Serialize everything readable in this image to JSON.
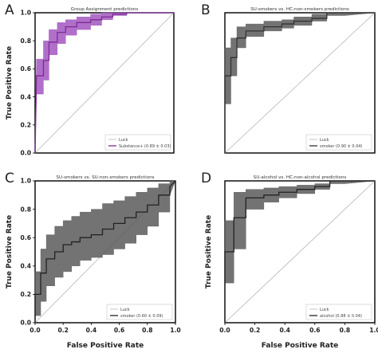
{
  "figure": {
    "ylabel": "True Positive Rate",
    "xlabel": "False Positive Rate"
  },
  "chart_data": [
    {
      "letter": "A",
      "type": "line",
      "title": "Group Assignment predictions",
      "xlim": [
        0,
        1
      ],
      "ylim": [
        0,
        1
      ],
      "xticks": [],
      "yticks": [
        "0.0",
        "0.2",
        "0.4",
        "0.6",
        "0.8",
        "1.0"
      ],
      "color": "#7f2a96",
      "fill": "#a257c0",
      "luck_label": "Luck",
      "series_label": "Substance+ (0.89 ± 0.03)",
      "x": [
        0.0,
        0.01,
        0.02,
        0.03,
        0.06,
        0.06,
        0.1,
        0.1,
        0.16,
        0.16,
        0.22,
        0.22,
        0.3,
        0.3,
        0.4,
        0.4,
        0.48,
        0.48,
        0.56,
        0.56,
        0.66,
        0.66,
        0.8,
        1.0
      ],
      "y": [
        0.0,
        0.55,
        0.55,
        0.55,
        0.55,
        0.66,
        0.66,
        0.79,
        0.79,
        0.86,
        0.86,
        0.9,
        0.9,
        0.93,
        0.93,
        0.95,
        0.95,
        0.97,
        0.97,
        0.99,
        0.99,
        1.0,
        1.0,
        1.0
      ],
      "lo": [
        0.0,
        0.42,
        0.42,
        0.42,
        0.42,
        0.52,
        0.52,
        0.7,
        0.7,
        0.78,
        0.78,
        0.84,
        0.84,
        0.88,
        0.88,
        0.91,
        0.91,
        0.95,
        0.95,
        0.98,
        0.98,
        1.0,
        1.0,
        1.0
      ],
      "hi": [
        0.0,
        0.67,
        0.67,
        0.67,
        0.67,
        0.8,
        0.8,
        0.88,
        0.88,
        0.93,
        0.93,
        0.95,
        0.95,
        0.97,
        0.97,
        0.99,
        0.99,
        1.0,
        1.0,
        1.0,
        1.0,
        1.0,
        1.0,
        1.0
      ]
    },
    {
      "letter": "B",
      "type": "line",
      "title": "SU-smokers vs. HC-non-smokers predictions",
      "xlim": [
        0,
        1
      ],
      "ylim": [
        0,
        1
      ],
      "xticks": [],
      "yticks": [],
      "color": "#333333",
      "fill": "#5a5a5a",
      "luck_label": "Luck",
      "series_label": "smoker (0.90 ± 0.04)",
      "x": [
        0.0,
        0.0,
        0.04,
        0.04,
        0.08,
        0.08,
        0.14,
        0.14,
        0.26,
        0.26,
        0.38,
        0.38,
        0.46,
        0.46,
        0.58,
        0.58,
        0.68,
        0.68,
        0.8,
        1.0
      ],
      "y": [
        0.0,
        0.55,
        0.55,
        0.68,
        0.68,
        0.82,
        0.82,
        0.87,
        0.87,
        0.9,
        0.9,
        0.92,
        0.92,
        0.94,
        0.94,
        0.96,
        0.96,
        1.0,
        1.0,
        1.0
      ],
      "lo": [
        0.0,
        0.35,
        0.35,
        0.55,
        0.55,
        0.75,
        0.75,
        0.83,
        0.83,
        0.87,
        0.87,
        0.89,
        0.89,
        0.91,
        0.91,
        0.94,
        0.94,
        0.98,
        0.98,
        1.0
      ],
      "hi": [
        0.0,
        0.75,
        0.75,
        0.82,
        0.82,
        0.9,
        0.9,
        0.92,
        0.92,
        0.94,
        0.94,
        0.95,
        0.95,
        0.97,
        0.97,
        0.99,
        0.99,
        1.0,
        1.0,
        1.0
      ]
    },
    {
      "letter": "C",
      "type": "line",
      "title": "SU-smokers vs. SU-non-smokers predictions",
      "xlim": [
        0,
        1
      ],
      "ylim": [
        0,
        1
      ],
      "xticks": [
        "0.0",
        "0.2",
        "0.4",
        "0.6",
        "0.8",
        "1.0"
      ],
      "yticks": [
        "0.0",
        "0.2",
        "0.4",
        "0.6",
        "0.8",
        "1.0"
      ],
      "color": "#222222",
      "fill": "#5a5a5a",
      "luck_label": "Luck",
      "series_label": "smoker (0.60 ± 0.09)",
      "x": [
        0.0,
        0.0,
        0.04,
        0.04,
        0.08,
        0.08,
        0.14,
        0.14,
        0.2,
        0.2,
        0.26,
        0.26,
        0.32,
        0.32,
        0.4,
        0.4,
        0.48,
        0.48,
        0.56,
        0.56,
        0.64,
        0.64,
        0.72,
        0.72,
        0.8,
        0.8,
        0.88,
        0.88,
        0.96,
        0.96,
        1.0
      ],
      "y": [
        0.0,
        0.2,
        0.2,
        0.35,
        0.35,
        0.45,
        0.45,
        0.5,
        0.5,
        0.55,
        0.55,
        0.57,
        0.57,
        0.6,
        0.6,
        0.62,
        0.62,
        0.66,
        0.66,
        0.7,
        0.7,
        0.74,
        0.74,
        0.78,
        0.78,
        0.83,
        0.83,
        0.9,
        0.9,
        0.96,
        1.0
      ],
      "lo": [
        0.0,
        0.05,
        0.05,
        0.15,
        0.15,
        0.26,
        0.26,
        0.32,
        0.32,
        0.36,
        0.36,
        0.4,
        0.4,
        0.44,
        0.44,
        0.46,
        0.46,
        0.48,
        0.48,
        0.52,
        0.52,
        0.56,
        0.56,
        0.62,
        0.62,
        0.68,
        0.68,
        0.78,
        0.78,
        0.9,
        1.0
      ],
      "hi": [
        0.0,
        0.36,
        0.36,
        0.52,
        0.52,
        0.62,
        0.62,
        0.68,
        0.68,
        0.72,
        0.72,
        0.75,
        0.75,
        0.78,
        0.78,
        0.8,
        0.8,
        0.84,
        0.84,
        0.86,
        0.86,
        0.89,
        0.89,
        0.92,
        0.92,
        0.95,
        0.95,
        0.98,
        0.98,
        1.0,
        1.0
      ]
    },
    {
      "letter": "D",
      "type": "line",
      "title": "SU-alcohol vs. HC-non-alcohol predictions",
      "xlim": [
        0,
        1
      ],
      "ylim": [
        0,
        1
      ],
      "xticks": [
        "0.0",
        "0.2",
        "0.4",
        "0.6",
        "0.8",
        "1.0"
      ],
      "yticks": [],
      "color": "#222222",
      "fill": "#5a5a5a",
      "luck_label": "Luck",
      "series_label": "alcohol (0.88 ± 0.04)",
      "x": [
        0.0,
        0.0,
        0.06,
        0.06,
        0.14,
        0.14,
        0.26,
        0.26,
        0.36,
        0.36,
        0.48,
        0.48,
        0.6,
        0.6,
        0.7,
        0.7,
        0.8,
        1.0
      ],
      "y": [
        0.0,
        0.5,
        0.5,
        0.74,
        0.74,
        0.88,
        0.88,
        0.9,
        0.9,
        0.92,
        0.92,
        0.94,
        0.94,
        0.96,
        0.96,
        1.0,
        1.0,
        1.0
      ],
      "lo": [
        0.0,
        0.28,
        0.28,
        0.52,
        0.52,
        0.8,
        0.8,
        0.85,
        0.85,
        0.88,
        0.88,
        0.91,
        0.91,
        0.94,
        0.94,
        0.98,
        0.98,
        1.0
      ],
      "hi": [
        0.0,
        0.72,
        0.72,
        0.92,
        0.92,
        0.94,
        0.94,
        0.95,
        0.95,
        0.96,
        0.96,
        0.97,
        0.97,
        0.98,
        0.98,
        1.0,
        1.0,
        1.0
      ]
    }
  ]
}
